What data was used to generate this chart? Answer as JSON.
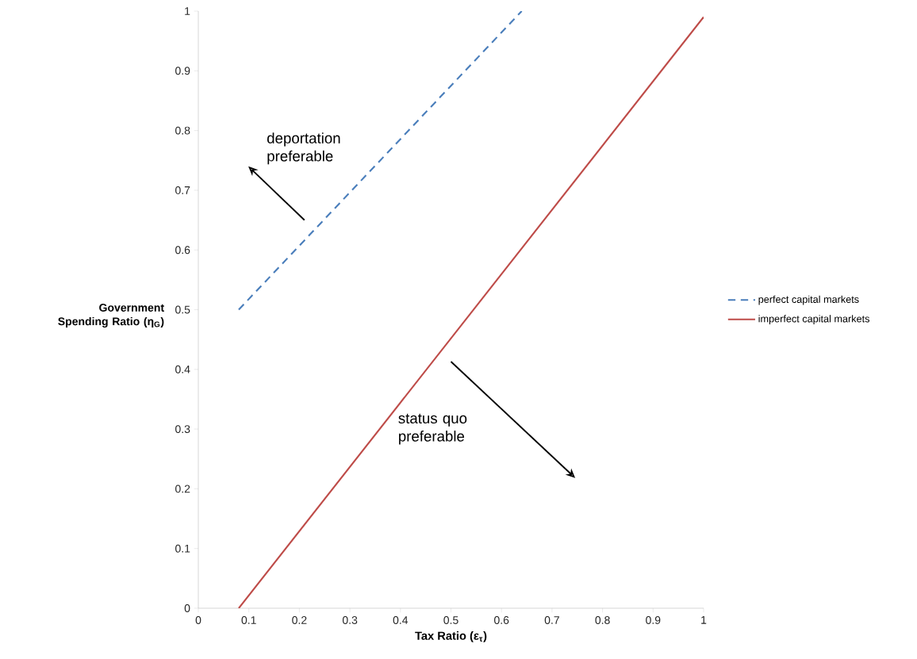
{
  "chart_data": {
    "type": "line",
    "xlabel": "Tax Ratio (ε$_{τ}$)",
    "ylabel": "Government Spending Ratio (η$_{G}$)",
    "series": [
      {
        "name": "perfect capital markets",
        "color": "#4a7ebb",
        "line_style": "dashed",
        "x": [
          0.08,
          0.64
        ],
        "values": [
          0.5,
          1.0
        ]
      },
      {
        "name": "imperfect capital markets",
        "color": "#be4b48",
        "line_style": "solid",
        "x": [
          0.08,
          1.0
        ],
        "values": [
          0,
          0.99
        ]
      }
    ],
    "xlim": [
      0,
      1
    ],
    "ylim": [
      0,
      1
    ],
    "xticks": [
      0,
      0.1,
      0.2,
      0.3,
      0.4,
      0.5,
      0.6,
      0.7,
      0.8,
      0.9,
      1
    ],
    "yticks": [
      0,
      0.1,
      0.2,
      0.3,
      0.4,
      0.5,
      0.6,
      0.7,
      0.8,
      0.9,
      1
    ],
    "annotations": [
      "deportation preferable",
      "status quo preferable"
    ],
    "legend": "right",
    "grid": false,
    "marker": "none"
  }
}
